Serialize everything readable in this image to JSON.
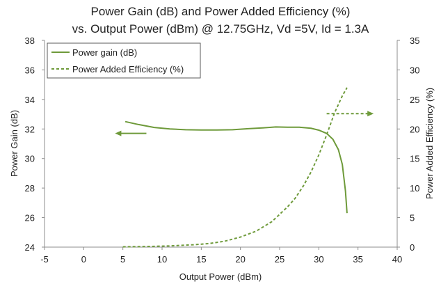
{
  "chart_data": {
    "type": "line",
    "title": "Power Gain (dB) and Power Added Efficiency (%)",
    "subtitle": "vs. Output Power (dBm) @ 12.75GHz, Vd =5V, Id = 1.3A",
    "xlabel": "Output Power (dBm)",
    "ylabel": "Power Gain (dB)",
    "y2label": "Power Added Efficiency (%)",
    "xlim": [
      -5,
      40
    ],
    "ylim": [
      24,
      38
    ],
    "y2lim": [
      0,
      35
    ],
    "x_ticks": [
      "-5",
      "0",
      "5",
      "10",
      "15",
      "20",
      "25",
      "30",
      "35",
      "40"
    ],
    "y_ticks": [
      "24",
      "26",
      "28",
      "30",
      "32",
      "34",
      "36",
      "38"
    ],
    "y2_ticks": [
      "0",
      "5",
      "10",
      "15",
      "20",
      "25",
      "30",
      "35"
    ],
    "grid": false,
    "legend_position": "top-left",
    "color": "#6e9a3a",
    "series": [
      {
        "name": "Power gain (dB)",
        "axis": "left",
        "style": "solid",
        "x": [
          5.3,
          7,
          9,
          11,
          13,
          15,
          17,
          19,
          21,
          23,
          24.5,
          26,
          27.5,
          29,
          30,
          31,
          31.8,
          32.5,
          33,
          33.4,
          33.6
        ],
        "y": [
          32.5,
          32.3,
          32.1,
          32.0,
          31.95,
          31.93,
          31.93,
          31.95,
          32.02,
          32.08,
          32.14,
          32.12,
          32.12,
          32.05,
          31.92,
          31.7,
          31.3,
          30.6,
          29.6,
          27.8,
          26.3
        ]
      },
      {
        "name": "Power Added Efficiency (%)",
        "axis": "right",
        "style": "dashed",
        "x": [
          5,
          8,
          11,
          14,
          16,
          18,
          20,
          22,
          24,
          26,
          27,
          28,
          29,
          30,
          31,
          32,
          33,
          33.6
        ],
        "y": [
          0.05,
          0.1,
          0.2,
          0.4,
          0.6,
          1.0,
          1.7,
          2.7,
          4.3,
          6.8,
          8.3,
          10.3,
          12.7,
          15.6,
          19.0,
          22.7,
          25.6,
          27.0
        ]
      }
    ],
    "annotations": [
      {
        "name": "arrow-left-gain",
        "direction": "left",
        "x_from": 8,
        "x_to": 4,
        "y": 31.7,
        "axis": "left"
      },
      {
        "name": "arrow-right-pae",
        "direction": "right",
        "x_from": 31,
        "x_to": 37,
        "y": 22.6,
        "axis": "right"
      }
    ]
  }
}
